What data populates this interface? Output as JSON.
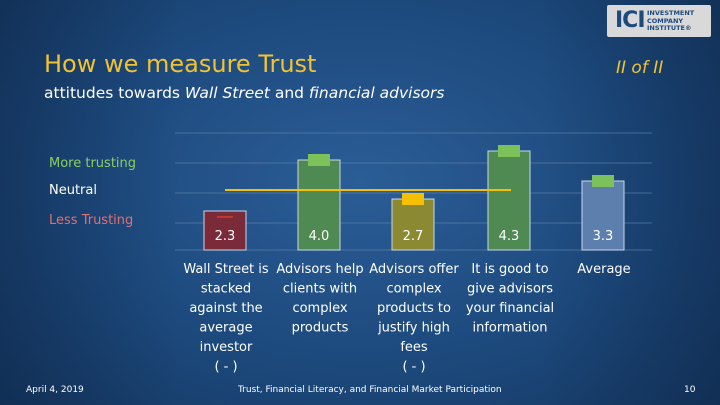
{
  "header": {
    "title": "How we measure Trust",
    "subtitle_prefix": "attitudes towards ",
    "subtitle_em1": "Wall Street",
    "subtitle_mid": " and ",
    "subtitle_em2": "financial advisors",
    "page_indicator": "II of II",
    "logo_text": "INVESTMENT\nCOMPANY\nINSTITUTE®",
    "logo_mark": "ICI"
  },
  "footer": {
    "date": "April 4, 2019",
    "source": "Trust, Financial Literacy, and Financial Market Participation",
    "page_number": "10"
  },
  "chart_data": {
    "type": "bar",
    "categories": [
      [
        "Wall Street is",
        "stacked",
        "against the",
        "average",
        "investor",
        "( - )"
      ],
      [
        "Advisors help",
        "clients with",
        "complex",
        "products"
      ],
      [
        "Advisors offer",
        "complex",
        "products to",
        "justify high",
        "fees",
        "( - )"
      ],
      [
        "It is good to",
        "give advisors",
        "your financial",
        "information"
      ],
      [
        "Average"
      ]
    ],
    "values": [
      2.3,
      4.0,
      2.7,
      4.3,
      3.3
    ],
    "value_labels": [
      "2.3",
      "4.0",
      "2.7",
      "4.3",
      "3.3"
    ],
    "bar_colors": [
      "#7a2a38",
      "#4e8a52",
      "#8b8a33",
      "#4e8a52",
      "#5d7fae"
    ],
    "marker_colors": [
      "#c0392b",
      "#7cc15a",
      "#f5c000",
      "#7cc15a",
      "#7cc15a"
    ],
    "levels": [
      "More trusting",
      "Neutral",
      "Less Trusting"
    ],
    "level_colors": [
      "#8ccf5e",
      "#ffffff",
      "#e07070"
    ],
    "neutral_line_color": "#f5c000"
  }
}
